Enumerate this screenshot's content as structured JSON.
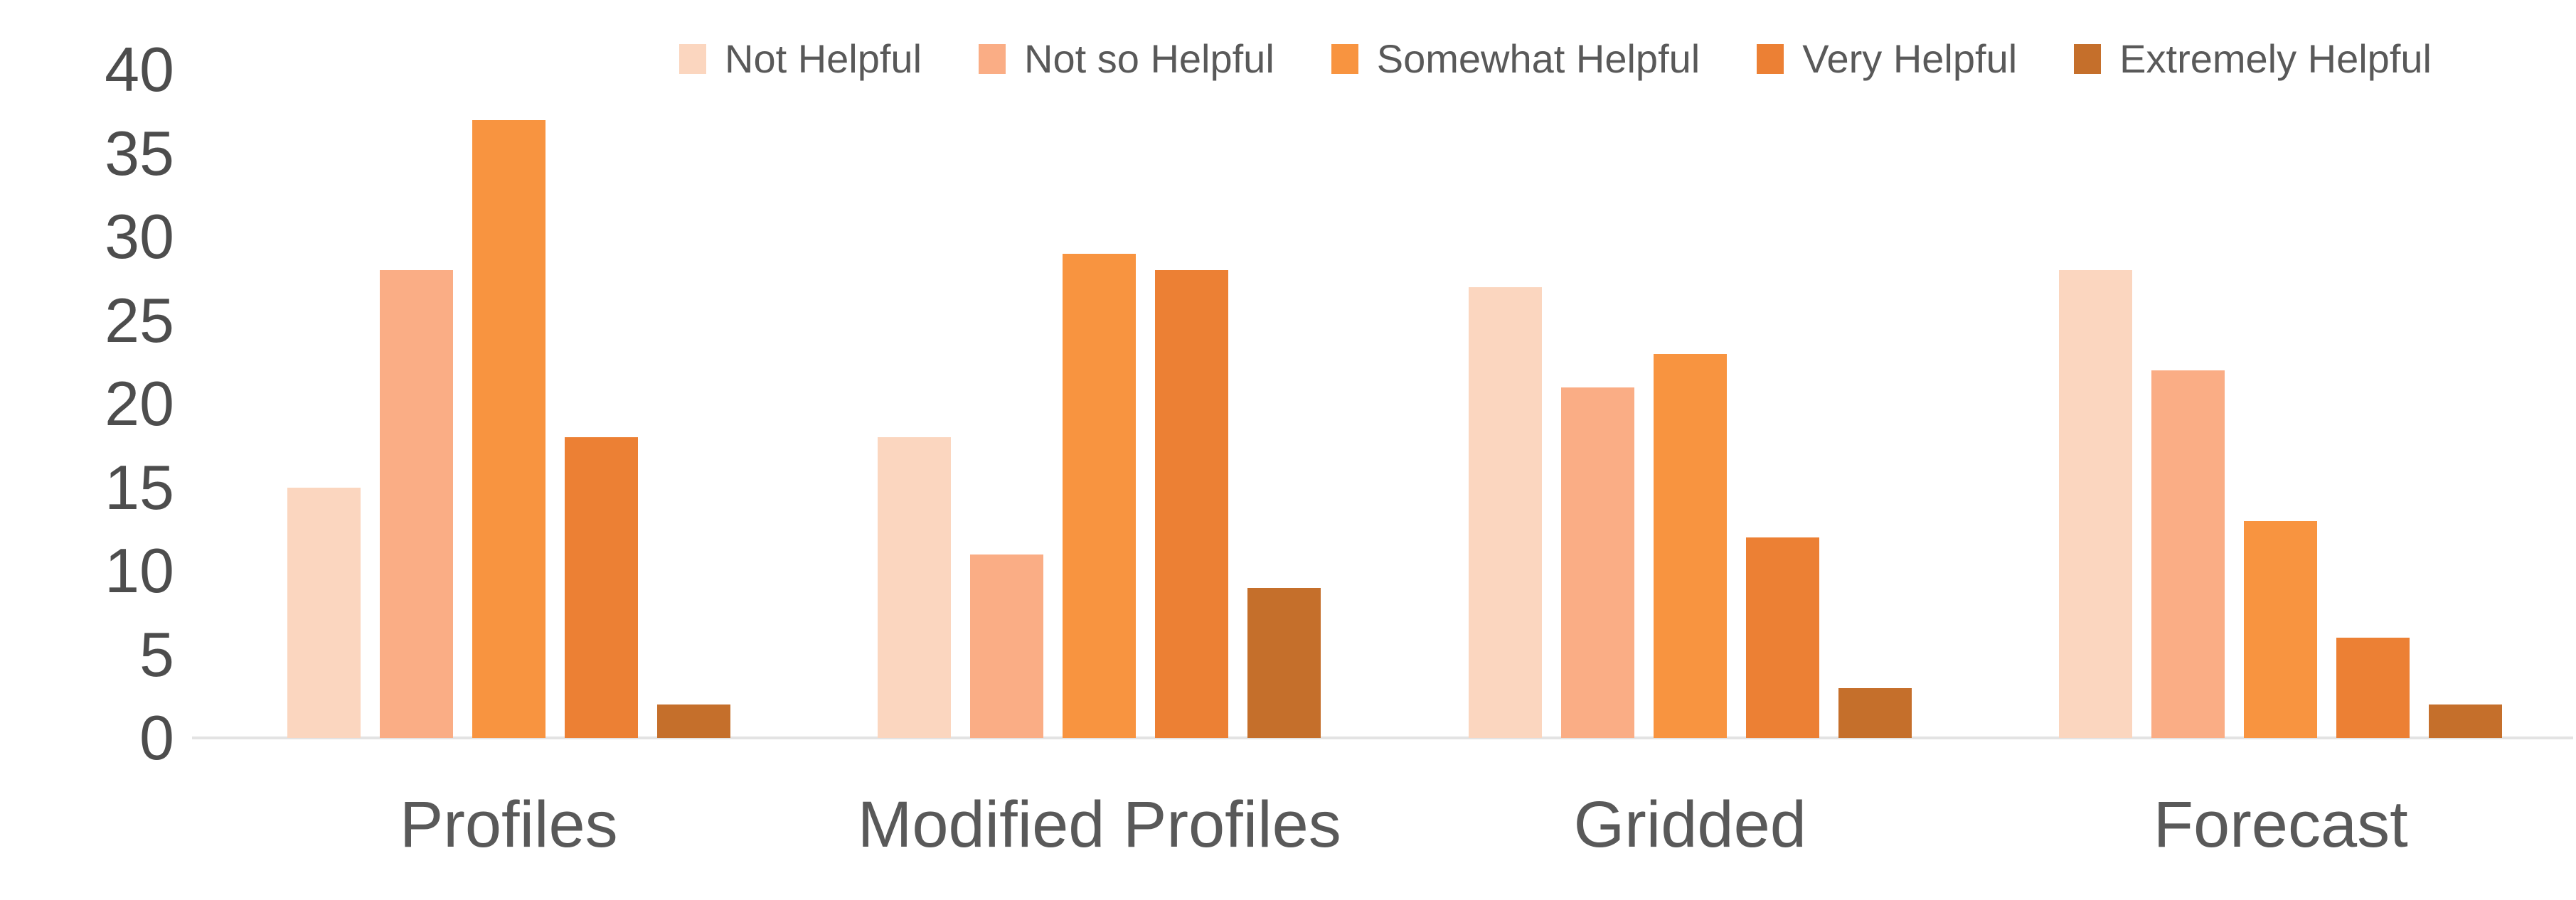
{
  "chart_data": {
    "type": "bar",
    "title": "",
    "xlabel": "",
    "ylabel": "",
    "categories": [
      "Profiles",
      "Modified Profiles",
      "Gridded",
      "Forecast"
    ],
    "series": [
      {
        "name": "Not Helpful",
        "color": "#FBD6BF",
        "values": [
          15,
          18,
          27,
          28
        ]
      },
      {
        "name": "Not so Helpful",
        "color": "#FAAD85",
        "values": [
          28,
          11,
          21,
          22
        ]
      },
      {
        "name": "Somewhat Helpful",
        "color": "#F89440",
        "values": [
          37,
          29,
          23,
          13
        ]
      },
      {
        "name": "Very Helpful",
        "color": "#EC8034",
        "values": [
          18,
          28,
          12,
          6
        ]
      },
      {
        "name": "Extremely Helpful",
        "color": "#C56F2B",
        "values": [
          2,
          9,
          3,
          2
        ]
      }
    ],
    "ylim": [
      0,
      40
    ],
    "yticks": [
      0,
      5,
      10,
      15,
      20,
      25,
      30,
      35,
      40
    ],
    "grid": false,
    "legend_position": "top",
    "colors": {
      "text": "#595959",
      "axis_line": "#E3E3E3",
      "background": "#FFFFFF"
    }
  }
}
